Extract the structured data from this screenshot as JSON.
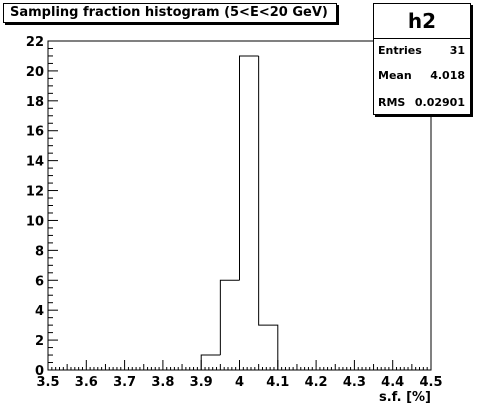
{
  "title": "Sampling fraction histogram (5<E<20 GeV)",
  "stats": {
    "name": "h2",
    "rows": [
      {
        "label": "Entries",
        "value": "31"
      },
      {
        "label": "Mean",
        "value": "4.018"
      },
      {
        "label": "RMS",
        "value": "0.02901"
      }
    ]
  },
  "chart_data": {
    "type": "bar",
    "title": "Sampling fraction histogram (5<E<20 GeV)",
    "xlabel": "s.f. [%]",
    "ylabel": "",
    "xlim": [
      3.5,
      4.5
    ],
    "ylim": [
      0,
      22
    ],
    "x_ticks": [
      "3.5",
      "3.6",
      "3.7",
      "3.8",
      "3.9",
      "4",
      "4.1",
      "4.2",
      "4.3",
      "4.4",
      "4.5"
    ],
    "y_ticks": [
      "0",
      "2",
      "4",
      "6",
      "8",
      "10",
      "12",
      "14",
      "16",
      "18",
      "20",
      "22"
    ],
    "bins": [
      {
        "x0": 3.9,
        "x1": 3.95,
        "count": 1
      },
      {
        "x0": 3.95,
        "x1": 4.0,
        "count": 6
      },
      {
        "x0": 4.0,
        "x1": 4.05,
        "count": 21
      },
      {
        "x0": 4.05,
        "x1": 4.1,
        "count": 3
      }
    ],
    "grid": false,
    "legend": "none"
  }
}
